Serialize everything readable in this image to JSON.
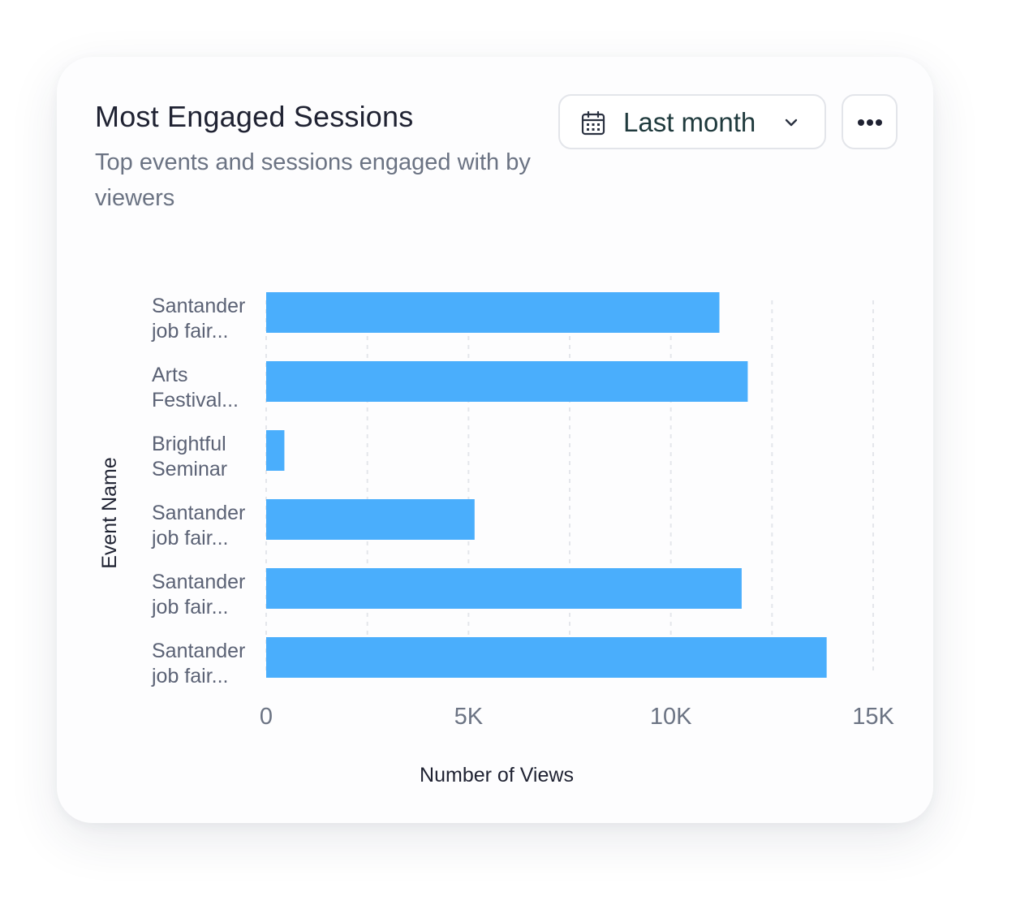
{
  "card": {
    "title": "Most Engaged Sessions",
    "subtitle": "Top events and sessions engaged with by viewers"
  },
  "controls": {
    "date_range_label": "Last month",
    "date_icon": "calendar-icon",
    "chevron_icon": "chevron-down-icon",
    "more_icon": "more-horizontal-icon"
  },
  "colors": {
    "bar": "#4aaefc",
    "grid": "#e4e6eb"
  },
  "chart_data": {
    "type": "bar",
    "orientation": "horizontal",
    "categories": [
      [
        "Santander",
        "job fair..."
      ],
      [
        "Arts",
        "Festival..."
      ],
      [
        "Brightful",
        "Seminar"
      ],
      [
        "Santander",
        "job fair..."
      ],
      [
        "Santander",
        "job fair..."
      ],
      [
        "Santander",
        "job fair..."
      ]
    ],
    "values": [
      11200,
      11900,
      450,
      5150,
      11750,
      13850
    ],
    "xlabel": "Number of Views",
    "ylabel": "Event Name",
    "xlim": [
      0,
      15000
    ],
    "xticks": [
      {
        "value": 0,
        "label": "0"
      },
      {
        "value": 5000,
        "label": "5K"
      },
      {
        "value": 10000,
        "label": "10K"
      },
      {
        "value": 15000,
        "label": "15K"
      }
    ],
    "grid": {
      "vertical": true,
      "style": "dashed",
      "step": 2500
    }
  }
}
